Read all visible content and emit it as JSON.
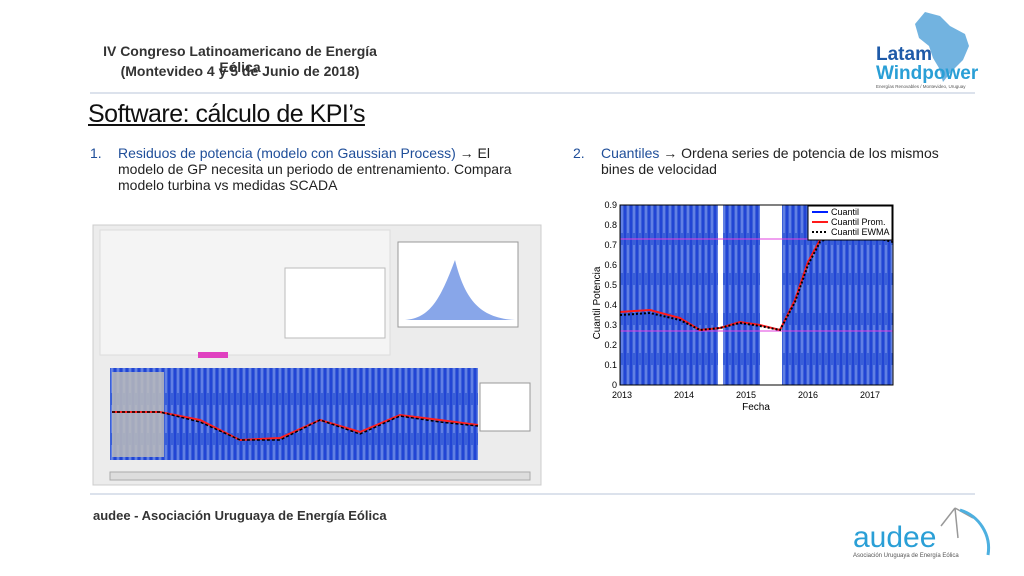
{
  "header": {
    "line1": "IV Congreso Latinoamericano de Energía Eólica",
    "line2": "(Montevideo 4 y 5 de Junio de 2018)"
  },
  "logo": {
    "word1": "Latam",
    "word2": "Windpower",
    "tagline": "Energías Renovables / Montevideo, Uruguay"
  },
  "title": "Software: cálculo de KPI’s",
  "items": [
    {
      "heading": "Residuos de potencia (modelo con Gaussian Process)",
      "text": "→ El modelo de GP necesita un periodo de entrenamiento. Compara modelo turbina vs medidas SCADA"
    },
    {
      "heading": "Cuantiles",
      "text": "→ Ordena series de potencia de los mismos bines de velocidad"
    }
  ],
  "figure": {
    "y_label": "Cuantil Potencia",
    "x_label": "Fecha",
    "yticks": [
      0,
      0.1,
      0.2,
      0.3,
      0.4,
      0.5,
      0.6,
      0.7,
      0.8,
      0.9
    ],
    "xticks": [
      2013,
      2014,
      2015,
      2016,
      2017
    ],
    "legend": [
      "Cuantil",
      "Cuantil Prom.",
      "Cuantil EWMA"
    ]
  },
  "footer": {
    "text": "audee - Asociación Uruguaya de Energía Eólica",
    "logo": "audee",
    "logo_tagline": "Asociación Uruguaya de Energía Eólica"
  }
}
